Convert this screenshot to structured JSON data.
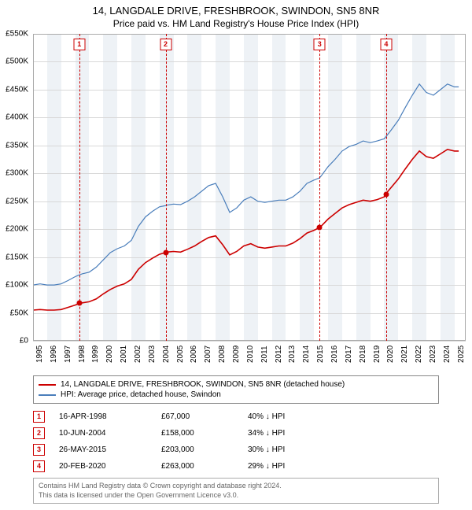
{
  "title": "14, LANGDALE DRIVE, FRESHBROOK, SWINDON, SN5 8NR",
  "subtitle": "Price paid vs. HM Land Registry's House Price Index (HPI)",
  "chart": {
    "type": "line",
    "background_color": "#ffffff",
    "band_color": "#eef2f6",
    "grid_color": "#d8d8d8",
    "border_color": "#aaaaaa",
    "ylim": [
      0,
      550000
    ],
    "ytick_step": 50000,
    "y_prefix": "£",
    "y_labels": [
      "£0",
      "£50K",
      "£100K",
      "£150K",
      "£200K",
      "£250K",
      "£300K",
      "£350K",
      "£400K",
      "£450K",
      "£500K",
      "£550K"
    ],
    "xlim": [
      1995,
      2025.8
    ],
    "x_labels": [
      "1995",
      "1996",
      "1997",
      "1998",
      "1999",
      "2000",
      "2001",
      "2002",
      "2003",
      "2004",
      "2005",
      "2006",
      "2007",
      "2008",
      "2009",
      "2010",
      "2011",
      "2012",
      "2013",
      "2014",
      "2015",
      "2016",
      "2017",
      "2018",
      "2019",
      "2020",
      "2021",
      "2022",
      "2023",
      "2024",
      "2025"
    ],
    "series": [
      {
        "name": "hpi",
        "label": "HPI: Average price, detached house, Swindon",
        "color": "#4a7ebb",
        "line_width": 1.2,
        "points": [
          [
            1995.0,
            100000
          ],
          [
            1995.5,
            102000
          ],
          [
            1996.0,
            100000
          ],
          [
            1996.5,
            100000
          ],
          [
            1997.0,
            102000
          ],
          [
            1997.5,
            108000
          ],
          [
            1998.0,
            115000
          ],
          [
            1998.3,
            118000
          ],
          [
            1998.5,
            120000
          ],
          [
            1999.0,
            123000
          ],
          [
            1999.5,
            132000
          ],
          [
            2000.0,
            145000
          ],
          [
            2000.5,
            158000
          ],
          [
            2001.0,
            165000
          ],
          [
            2001.5,
            170000
          ],
          [
            2002.0,
            180000
          ],
          [
            2002.5,
            205000
          ],
          [
            2003.0,
            222000
          ],
          [
            2003.5,
            232000
          ],
          [
            2004.0,
            240000
          ],
          [
            2004.4,
            242000
          ],
          [
            2004.5,
            243000
          ],
          [
            2005.0,
            245000
          ],
          [
            2005.5,
            244000
          ],
          [
            2006.0,
            250000
          ],
          [
            2006.5,
            258000
          ],
          [
            2007.0,
            268000
          ],
          [
            2007.5,
            278000
          ],
          [
            2008.0,
            282000
          ],
          [
            2008.5,
            258000
          ],
          [
            2009.0,
            230000
          ],
          [
            2009.5,
            238000
          ],
          [
            2010.0,
            252000
          ],
          [
            2010.5,
            258000
          ],
          [
            2011.0,
            250000
          ],
          [
            2011.5,
            248000
          ],
          [
            2012.0,
            250000
          ],
          [
            2012.5,
            252000
          ],
          [
            2013.0,
            252000
          ],
          [
            2013.5,
            258000
          ],
          [
            2014.0,
            268000
          ],
          [
            2014.5,
            282000
          ],
          [
            2015.0,
            288000
          ],
          [
            2015.4,
            292000
          ],
          [
            2015.5,
            295000
          ],
          [
            2016.0,
            312000
          ],
          [
            2016.5,
            325000
          ],
          [
            2017.0,
            340000
          ],
          [
            2017.5,
            348000
          ],
          [
            2018.0,
            352000
          ],
          [
            2018.5,
            358000
          ],
          [
            2019.0,
            355000
          ],
          [
            2019.5,
            358000
          ],
          [
            2020.0,
            362000
          ],
          [
            2020.1,
            365000
          ],
          [
            2020.5,
            378000
          ],
          [
            2021.0,
            395000
          ],
          [
            2021.5,
            418000
          ],
          [
            2022.0,
            440000
          ],
          [
            2022.5,
            460000
          ],
          [
            2023.0,
            445000
          ],
          [
            2023.5,
            440000
          ],
          [
            2024.0,
            450000
          ],
          [
            2024.5,
            460000
          ],
          [
            2025.0,
            455000
          ],
          [
            2025.3,
            455000
          ]
        ]
      },
      {
        "name": "property",
        "label": "14, LANGDALE DRIVE, FRESHBROOK, SWINDON, SN5 8NR (detached house)",
        "color": "#cc0000",
        "line_width": 1.6,
        "points": [
          [
            1995.0,
            55000
          ],
          [
            1995.5,
            56000
          ],
          [
            1996.0,
            55000
          ],
          [
            1996.5,
            55000
          ],
          [
            1997.0,
            56000
          ],
          [
            1997.5,
            60000
          ],
          [
            1998.0,
            64000
          ],
          [
            1998.3,
            67000
          ],
          [
            1998.5,
            68000
          ],
          [
            1999.0,
            70000
          ],
          [
            1999.5,
            75000
          ],
          [
            2000.0,
            84000
          ],
          [
            2000.5,
            92000
          ],
          [
            2001.0,
            98000
          ],
          [
            2001.5,
            102000
          ],
          [
            2002.0,
            110000
          ],
          [
            2002.5,
            128000
          ],
          [
            2003.0,
            140000
          ],
          [
            2003.5,
            148000
          ],
          [
            2004.0,
            155000
          ],
          [
            2004.4,
            158000
          ],
          [
            2004.5,
            159000
          ],
          [
            2005.0,
            160000
          ],
          [
            2005.5,
            159000
          ],
          [
            2006.0,
            164000
          ],
          [
            2006.5,
            170000
          ],
          [
            2007.0,
            178000
          ],
          [
            2007.5,
            185000
          ],
          [
            2008.0,
            188000
          ],
          [
            2008.5,
            172000
          ],
          [
            2009.0,
            154000
          ],
          [
            2009.5,
            160000
          ],
          [
            2010.0,
            170000
          ],
          [
            2010.5,
            174000
          ],
          [
            2011.0,
            168000
          ],
          [
            2011.5,
            166000
          ],
          [
            2012.0,
            168000
          ],
          [
            2012.5,
            170000
          ],
          [
            2013.0,
            170000
          ],
          [
            2013.5,
            175000
          ],
          [
            2014.0,
            183000
          ],
          [
            2014.5,
            193000
          ],
          [
            2015.0,
            198000
          ],
          [
            2015.4,
            203000
          ],
          [
            2015.5,
            205000
          ],
          [
            2016.0,
            218000
          ],
          [
            2016.5,
            228000
          ],
          [
            2017.0,
            238000
          ],
          [
            2017.5,
            244000
          ],
          [
            2018.0,
            248000
          ],
          [
            2018.5,
            252000
          ],
          [
            2019.0,
            250000
          ],
          [
            2019.5,
            253000
          ],
          [
            2020.0,
            258000
          ],
          [
            2020.1,
            263000
          ],
          [
            2020.5,
            275000
          ],
          [
            2021.0,
            290000
          ],
          [
            2021.5,
            308000
          ],
          [
            2022.0,
            325000
          ],
          [
            2022.5,
            340000
          ],
          [
            2023.0,
            330000
          ],
          [
            2023.5,
            327000
          ],
          [
            2024.0,
            335000
          ],
          [
            2024.5,
            343000
          ],
          [
            2025.0,
            340000
          ],
          [
            2025.3,
            340000
          ]
        ]
      }
    ],
    "sale_markers": [
      {
        "n": "1",
        "x": 1998.29,
        "y": 67000
      },
      {
        "n": "2",
        "x": 2004.44,
        "y": 158000
      },
      {
        "n": "3",
        "x": 2015.4,
        "y": 203000
      },
      {
        "n": "4",
        "x": 2020.14,
        "y": 263000
      }
    ],
    "marker_border_color": "#cc0000",
    "marker_fill_color": "#ffffff",
    "marker_text_color": "#cc0000",
    "vline_color": "#cc0000",
    "dot_color": "#cc0000"
  },
  "legend": {
    "items": [
      {
        "color": "#cc0000",
        "label": "14, LANGDALE DRIVE, FRESHBROOK, SWINDON, SN5 8NR (detached house)"
      },
      {
        "color": "#4a7ebb",
        "label": "HPI: Average price, detached house, Swindon"
      }
    ]
  },
  "sales_table": {
    "rows": [
      {
        "n": "1",
        "date": "16-APR-1998",
        "price": "£67,000",
        "pct": "40% ↓ HPI"
      },
      {
        "n": "2",
        "date": "10-JUN-2004",
        "price": "£158,000",
        "pct": "34% ↓ HPI"
      },
      {
        "n": "3",
        "date": "26-MAY-2015",
        "price": "£203,000",
        "pct": "30% ↓ HPI"
      },
      {
        "n": "4",
        "date": "20-FEB-2020",
        "price": "£263,000",
        "pct": "29% ↓ HPI"
      }
    ]
  },
  "footnote": {
    "line1": "Contains HM Land Registry data © Crown copyright and database right 2024.",
    "line2": "This data is licensed under the Open Government Licence v3.0."
  }
}
